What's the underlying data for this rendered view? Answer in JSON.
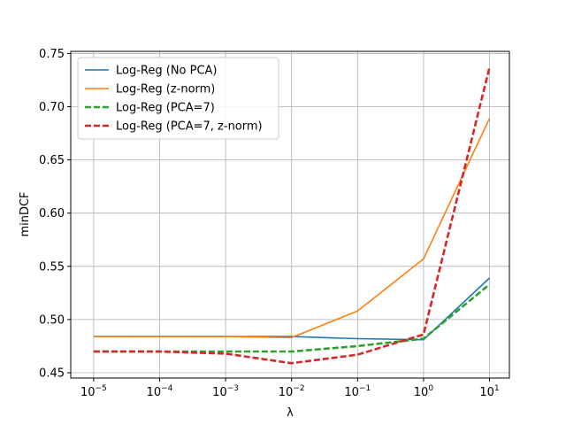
{
  "chart_data": {
    "type": "line",
    "title": "",
    "xlabel": "λ",
    "ylabel": "minDCF",
    "xscale": "log",
    "xlim": [
      4.5e-06,
      20
    ],
    "ylim": [
      0.445,
      0.752
    ],
    "x": [
      1e-05,
      0.0001,
      0.001,
      0.01,
      0.1,
      1,
      10
    ],
    "x_ticks": [
      {
        "value": 1e-05,
        "base": "10",
        "exp": "−5"
      },
      {
        "value": 0.0001,
        "base": "10",
        "exp": "−4"
      },
      {
        "value": 0.001,
        "base": "10",
        "exp": "−3"
      },
      {
        "value": 0.01,
        "base": "10",
        "exp": "−2"
      },
      {
        "value": 0.1,
        "base": "10",
        "exp": "−1"
      },
      {
        "value": 1,
        "base": "10",
        "exp": "0"
      },
      {
        "value": 10,
        "base": "10",
        "exp": "1"
      }
    ],
    "y_ticks": [
      {
        "value": 0.45,
        "label": "0.45"
      },
      {
        "value": 0.5,
        "label": "0.50"
      },
      {
        "value": 0.55,
        "label": "0.55"
      },
      {
        "value": 0.6,
        "label": "0.60"
      },
      {
        "value": 0.65,
        "label": "0.65"
      },
      {
        "value": 0.7,
        "label": "0.70"
      },
      {
        "value": 0.75,
        "label": "0.75"
      }
    ],
    "grid": true,
    "legend_position": "top-left",
    "series": [
      {
        "name": "Log-Reg (No PCA)",
        "color": "#1f77b4",
        "dash": "solid",
        "values": [
          0.484,
          0.484,
          0.484,
          0.484,
          0.482,
          0.481,
          0.539
        ]
      },
      {
        "name": "Log-Reg (z-norm)",
        "color": "#ff7f0e",
        "dash": "solid",
        "values": [
          0.484,
          0.484,
          0.484,
          0.483,
          0.508,
          0.557,
          0.689
        ]
      },
      {
        "name": "Log-Reg (PCA=7)",
        "color": "#2ca02c",
        "dash": "dashed",
        "values": [
          0.47,
          0.47,
          0.47,
          0.47,
          0.475,
          0.482,
          0.533
        ]
      },
      {
        "name": "Log-Reg (PCA=7, z-norm)",
        "color": "#d62728",
        "dash": "dashed",
        "values": [
          0.47,
          0.47,
          0.468,
          0.459,
          0.467,
          0.486,
          0.737
        ]
      }
    ]
  }
}
